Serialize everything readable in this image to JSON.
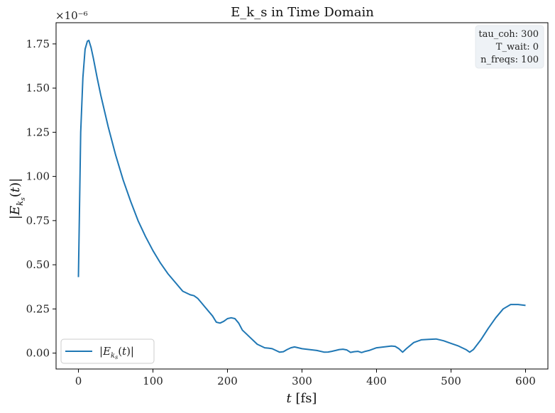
{
  "chart_data": {
    "type": "line",
    "title": "E_k_s in Time Domain",
    "xlabel": "t [fs]",
    "ylabel": "|E_{k_s}(t)|",
    "y_multiplier": "×10⁻⁶",
    "xlim": [
      -30,
      630
    ],
    "ylim": [
      -0.09,
      1.87
    ],
    "x_ticks": [
      0,
      100,
      200,
      300,
      400,
      500,
      600
    ],
    "y_ticks": [
      0.0,
      0.25,
      0.5,
      0.75,
      1.0,
      1.25,
      1.5,
      1.75
    ],
    "y_tick_labels": [
      "0.00",
      "0.25",
      "0.50",
      "0.75",
      "1.00",
      "1.25",
      "1.50",
      "1.75"
    ],
    "grid": false,
    "legend_placement": "lower-left",
    "info_box": [
      "tau_coh: 300",
      "T_wait: 0",
      "n_freqs: 100"
    ],
    "info_box_placement": "top-right",
    "series": [
      {
        "name": "|E_{k_s}(t)|",
        "color": "#1f77b4",
        "x": [
          0,
          3,
          6,
          9,
          12,
          14,
          17,
          20,
          25,
          30,
          40,
          50,
          60,
          70,
          80,
          90,
          100,
          110,
          120,
          130,
          140,
          150,
          155,
          160,
          165,
          170,
          180,
          185,
          190,
          195,
          200,
          205,
          210,
          215,
          220,
          225,
          230,
          240,
          250,
          255,
          260,
          265,
          270,
          275,
          280,
          285,
          290,
          295,
          300,
          310,
          320,
          330,
          335,
          340,
          345,
          350,
          355,
          360,
          365,
          370,
          375,
          380,
          385,
          390,
          400,
          410,
          420,
          425,
          430,
          435,
          440,
          450,
          460,
          470,
          480,
          490,
          500,
          510,
          520,
          525,
          530,
          540,
          550,
          560,
          570,
          580,
          590,
          600
        ],
        "y": [
          0.43,
          1.25,
          1.56,
          1.72,
          1.765,
          1.77,
          1.73,
          1.67,
          1.56,
          1.46,
          1.28,
          1.12,
          0.98,
          0.86,
          0.75,
          0.66,
          0.58,
          0.51,
          0.45,
          0.4,
          0.35,
          0.33,
          0.325,
          0.31,
          0.285,
          0.26,
          0.21,
          0.175,
          0.17,
          0.18,
          0.195,
          0.2,
          0.195,
          0.17,
          0.13,
          0.11,
          0.09,
          0.05,
          0.03,
          0.028,
          0.025,
          0.015,
          0.005,
          0.008,
          0.02,
          0.03,
          0.035,
          0.03,
          0.025,
          0.02,
          0.015,
          0.005,
          0.006,
          0.01,
          0.015,
          0.02,
          0.022,
          0.018,
          0.004,
          0.008,
          0.01,
          0.003,
          0.01,
          0.015,
          0.03,
          0.035,
          0.04,
          0.038,
          0.025,
          0.005,
          0.025,
          0.06,
          0.075,
          0.078,
          0.08,
          0.07,
          0.055,
          0.04,
          0.02,
          0.005,
          0.02,
          0.075,
          0.14,
          0.2,
          0.25,
          0.275,
          0.275,
          0.27
        ]
      }
    ]
  }
}
